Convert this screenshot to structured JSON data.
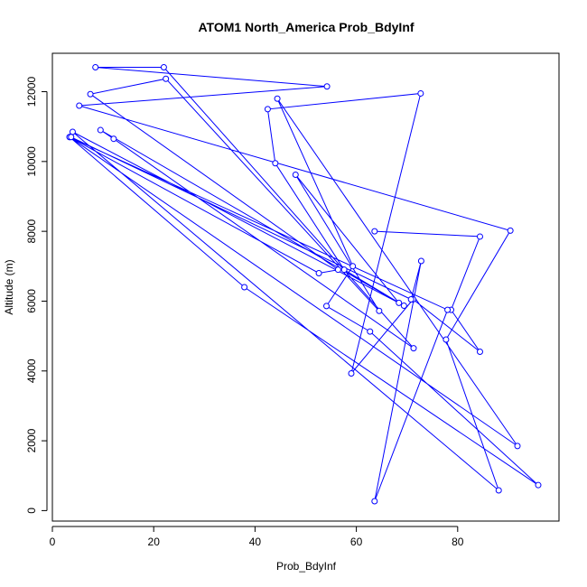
{
  "chart_data": {
    "type": "line",
    "title": "ATOM1 North_America Prob_BdyInf",
    "xlabel": "Prob_BdyInf",
    "ylabel": "Altitude (m)",
    "xlim": [
      0,
      100
    ],
    "ylim": [
      -300,
      13100
    ],
    "xticks": [
      0,
      20,
      40,
      60,
      80
    ],
    "yticks": [
      0,
      2000,
      4000,
      6000,
      8000,
      10000,
      12000
    ],
    "grid": false,
    "line_color": "#0000FF",
    "series": [
      {
        "x": [
          63.6,
          84.4,
          78.7,
          84.4,
          71.2,
          59.0,
          72.7,
          42.5,
          44.0,
          57.6,
          69.4,
          9.5,
          12.1,
          71.3,
          22.0,
          8.5,
          54.2,
          5.3,
          90.4,
          77.7,
          88.1,
          4.0,
          68.4,
          48.0,
          64.5,
          22.4,
          7.5,
          56.4,
          52.6,
          3.4,
          91.8,
          44.4,
          59.3,
          54.1,
          62.7,
          95.9,
          37.9,
          3.4,
          78.0,
          63.6,
          72.8,
          70.8,
          3.7
        ],
        "y": [
          8000,
          7850,
          5750,
          4550,
          6050,
          3930,
          11950,
          11500,
          9950,
          6900,
          5870,
          10900,
          10650,
          4650,
          12700,
          12700,
          12150,
          11600,
          8020,
          4900,
          580,
          10850,
          5950,
          9620,
          5720,
          12370,
          11930,
          6900,
          6800,
          10700,
          1850,
          11800,
          7000,
          5860,
          5130,
          730,
          6400,
          10700,
          5750,
          270,
          7150,
          6050,
          10700
        ]
      }
    ]
  }
}
